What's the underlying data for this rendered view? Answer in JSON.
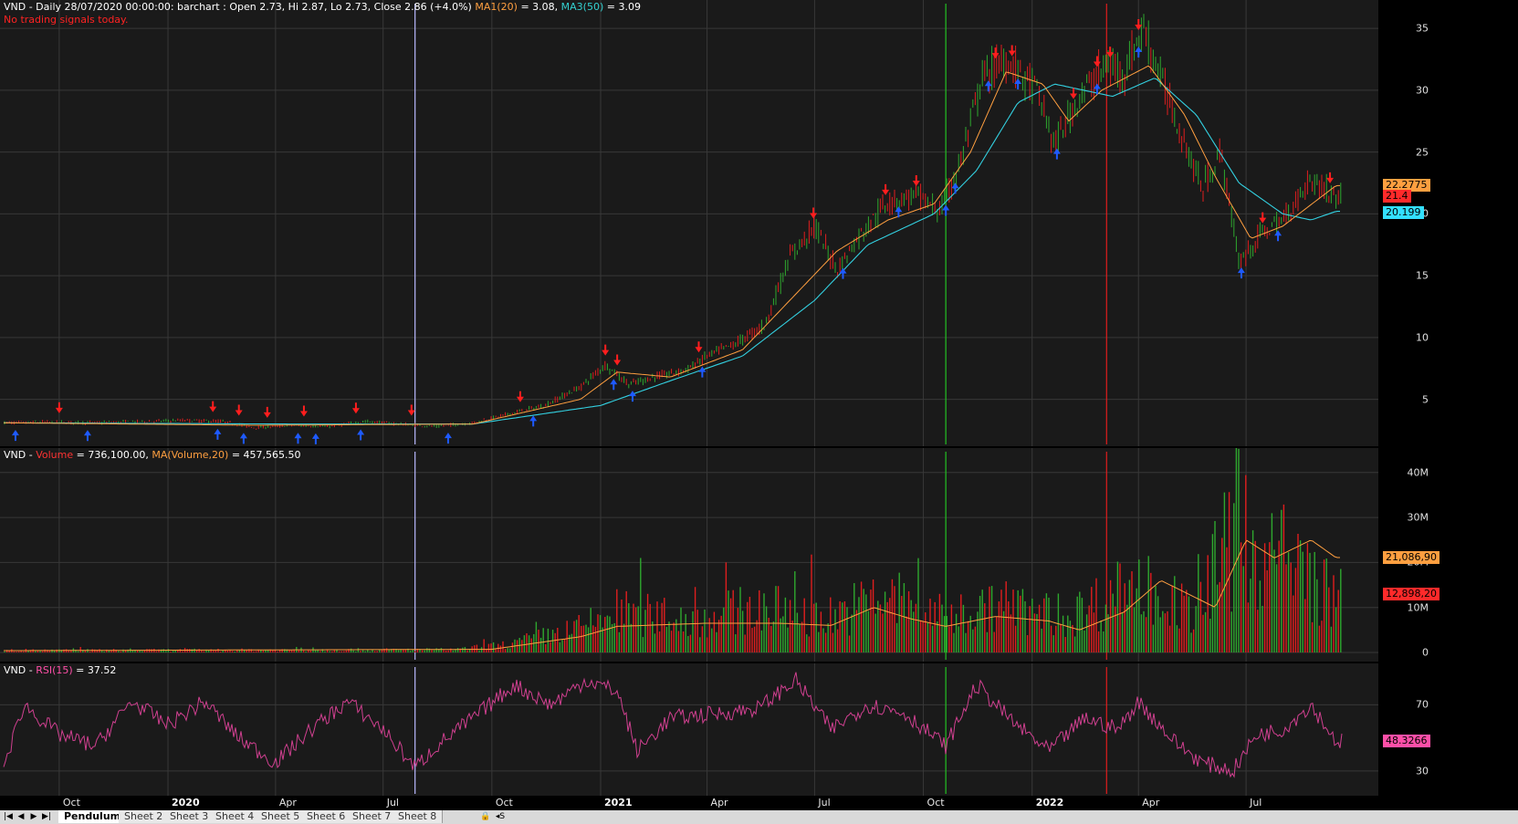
{
  "price_pane": {
    "header": {
      "prefix": "VND - Daily 28/07/2020 00:00:00: barchart : Open 2.73, Hi 2.87, Lo 2.73, Close 2.86 (+4.0%)",
      "ma1_label": "MA1(20)",
      "ma1_value": "= 3.08,",
      "ma3_label": "MA3(50)",
      "ma3_value": "= 3.09"
    },
    "note": "No trading signals today.",
    "y_ticks": [
      "35",
      "30",
      "25",
      "20",
      "15",
      "10",
      "5"
    ],
    "tags": [
      {
        "text": "22.2775",
        "color": "#ff9f40"
      },
      {
        "text": "21.4",
        "color": "#ff2a2a"
      },
      {
        "text": "20.199",
        "color": "#33e0ff"
      }
    ]
  },
  "volume_pane": {
    "header": {
      "prefix": "VND -",
      "vol_label": "Volume",
      "vol_value": "= 736,100.00,",
      "ma_label": "MA(Volume,20)",
      "ma_value": "= 457,565.50"
    },
    "y_ticks": [
      "40M",
      "30M",
      "20M",
      "10M",
      "0"
    ],
    "tags": [
      {
        "text": "21,086,90",
        "color": "#ff9f40"
      },
      {
        "text": "12,898,20",
        "color": "#ff2a2a"
      }
    ]
  },
  "rsi_pane": {
    "header": {
      "prefix": "VND -",
      "rsi_label": "RSI(15)",
      "rsi_value": "= 37.52"
    },
    "y_ticks": [
      "70",
      "30"
    ],
    "tags": [
      {
        "text": "48.3266",
        "color": "#ff4fa8"
      }
    ]
  },
  "x_axis": [
    {
      "label": "Oct",
      "bold": false
    },
    {
      "label": "2020",
      "bold": true
    },
    {
      "label": "Apr",
      "bold": false
    },
    {
      "label": "Jul",
      "bold": false
    },
    {
      "label": "Oct",
      "bold": false
    },
    {
      "label": "2021",
      "bold": true
    },
    {
      "label": "Apr",
      "bold": false
    },
    {
      "label": "Jul",
      "bold": false
    },
    {
      "label": "Oct",
      "bold": false
    },
    {
      "label": "2022",
      "bold": true
    },
    {
      "label": "Apr",
      "bold": false
    },
    {
      "label": "Jul",
      "bold": false
    }
  ],
  "tabs": [
    "Pendulum",
    "Sheet 2",
    "Sheet 3",
    "Sheet 4",
    "Sheet 5",
    "Sheet 6",
    "Sheet 7",
    "Sheet 8"
  ],
  "active_tab": "Pendulum",
  "nav_icons": [
    "first-icon",
    "prev-icon",
    "next-icon",
    "last-icon"
  ],
  "colors": {
    "up_bar": "#2ea82e",
    "down_bar": "#e01e1e",
    "ma1": "#ff9f40",
    "ma3": "#33d0e0",
    "rsi": "#d04090",
    "buy_arrow": "#1e5aff",
    "sell_arrow": "#ff1e1e",
    "grid": "#383838"
  },
  "chart_data": [
    {
      "type": "candlestick",
      "title": "VND - Daily",
      "y_range": [
        1.5,
        37
      ],
      "x_range": [
        "2019-08-15",
        "2022-09-20"
      ],
      "close_series": [
        [
          "2019-08-15",
          3.1
        ],
        [
          "2019-09-15",
          3.15
        ],
        [
          "2019-11-01",
          3.1
        ],
        [
          "2019-12-15",
          3.2
        ],
        [
          "2020-01-15",
          3.3
        ],
        [
          "2020-02-15",
          3.2
        ],
        [
          "2020-03-15",
          2.7
        ],
        [
          "2020-04-15",
          2.9
        ],
        [
          "2020-05-15",
          2.8
        ],
        [
          "2020-06-15",
          3.2
        ],
        [
          "2020-07-15",
          3.0
        ],
        [
          "2020-08-15",
          2.8
        ],
        [
          "2020-09-15",
          3.1
        ],
        [
          "2020-10-15",
          3.8
        ],
        [
          "2020-11-15",
          4.5
        ],
        [
          "2020-12-15",
          6.0
        ],
        [
          "2021-01-05",
          7.8
        ],
        [
          "2021-01-25",
          6.2
        ],
        [
          "2021-02-15",
          6.8
        ],
        [
          "2021-03-15",
          7.4
        ],
        [
          "2021-04-01",
          8.5
        ],
        [
          "2021-04-25",
          9.5
        ],
        [
          "2021-05-20",
          11.0
        ],
        [
          "2021-06-10",
          16.5
        ],
        [
          "2021-07-01",
          19.0
        ],
        [
          "2021-07-20",
          15.5
        ],
        [
          "2021-08-10",
          18.5
        ],
        [
          "2021-09-01",
          21.0
        ],
        [
          "2021-09-25",
          21.5
        ],
        [
          "2021-10-15",
          20.2
        ],
        [
          "2021-11-01",
          24.0
        ],
        [
          "2021-11-20",
          31.0
        ],
        [
          "2021-12-10",
          32.5
        ],
        [
          "2022-01-05",
          30.0
        ],
        [
          "2022-01-20",
          25.5
        ],
        [
          "2022-02-10",
          29.5
        ],
        [
          "2022-03-05",
          32.0
        ],
        [
          "2022-03-20",
          31.5
        ],
        [
          "2022-04-05",
          35.0
        ],
        [
          "2022-04-20",
          31.0
        ],
        [
          "2022-05-05",
          27.0
        ],
        [
          "2022-05-25",
          22.0
        ],
        [
          "2022-06-10",
          25.0
        ],
        [
          "2022-06-25",
          16.0
        ],
        [
          "2022-07-15",
          18.5
        ],
        [
          "2022-08-01",
          19.5
        ],
        [
          "2022-08-25",
          22.8
        ],
        [
          "2022-09-15",
          21.4
        ]
      ],
      "ma1_series": [
        [
          "2019-08-15",
          3.1
        ],
        [
          "2020-03-15",
          2.9
        ],
        [
          "2020-09-15",
          3.0
        ],
        [
          "2020-12-15",
          5.0
        ],
        [
          "2021-01-15",
          7.2
        ],
        [
          "2021-03-01",
          6.8
        ],
        [
          "2021-05-01",
          9.0
        ],
        [
          "2021-06-20",
          14.0
        ],
        [
          "2021-07-20",
          17.0
        ],
        [
          "2021-09-01",
          19.5
        ],
        [
          "2021-10-10",
          20.8
        ],
        [
          "2021-11-10",
          25.0
        ],
        [
          "2021-12-10",
          31.5
        ],
        [
          "2022-01-10",
          30.5
        ],
        [
          "2022-02-01",
          27.5
        ],
        [
          "2022-03-01",
          30.0
        ],
        [
          "2022-04-10",
          32.0
        ],
        [
          "2022-05-10",
          28.0
        ],
        [
          "2022-06-05",
          23.0
        ],
        [
          "2022-07-05",
          18.0
        ],
        [
          "2022-08-01",
          19.0
        ],
        [
          "2022-09-15",
          22.28
        ]
      ],
      "ma3_series": [
        [
          "2019-08-15",
          3.1
        ],
        [
          "2020-04-15",
          3.0
        ],
        [
          "2020-09-15",
          3.0
        ],
        [
          "2021-01-01",
          4.5
        ],
        [
          "2021-03-01",
          6.5
        ],
        [
          "2021-05-01",
          8.5
        ],
        [
          "2021-07-01",
          13.0
        ],
        [
          "2021-08-15",
          17.5
        ],
        [
          "2021-10-10",
          20.0
        ],
        [
          "2021-11-15",
          23.5
        ],
        [
          "2021-12-20",
          29.0
        ],
        [
          "2022-01-20",
          30.5
        ],
        [
          "2022-03-10",
          29.5
        ],
        [
          "2022-04-15",
          31.0
        ],
        [
          "2022-05-20",
          28.0
        ],
        [
          "2022-06-25",
          22.5
        ],
        [
          "2022-08-01",
          20.0
        ],
        [
          "2022-08-25",
          19.5
        ],
        [
          "2022-09-15",
          20.2
        ]
      ],
      "sell_signal_dates": [
        "2019-10-01",
        "2020-02-08",
        "2020-03-01",
        "2020-03-25",
        "2020-04-25",
        "2020-06-08",
        "2020-07-25",
        "2020-10-25",
        "2021-01-05",
        "2021-01-15",
        "2021-03-25",
        "2021-06-30",
        "2021-08-30",
        "2021-09-25",
        "2021-12-01",
        "2021-12-15",
        "2022-02-05",
        "2022-02-25",
        "2022-03-08",
        "2022-04-01",
        "2022-07-15",
        "2022-09-10"
      ],
      "buy_signal_dates": [
        "2019-08-25",
        "2019-10-25",
        "2020-02-12",
        "2020-03-05",
        "2020-04-20",
        "2020-05-05",
        "2020-06-12",
        "2020-08-25",
        "2020-11-05",
        "2021-01-12",
        "2021-01-28",
        "2021-03-28",
        "2021-07-25",
        "2021-09-10",
        "2021-10-20",
        "2021-10-28",
        "2021-11-25",
        "2021-12-20",
        "2022-01-22",
        "2022-02-25",
        "2022-04-01",
        "2022-06-27",
        "2022-07-28"
      ],
      "vertical_markers": [
        {
          "date": "2020-07-28",
          "color": "#b8b8ff"
        },
        {
          "date": "2021-10-20",
          "color": "#22c022"
        },
        {
          "date": "2022-03-05",
          "color": "#e01e1e"
        }
      ],
      "last_values": {
        "ma1": 22.2775,
        "close": 21.4,
        "ma3": 20.199
      }
    },
    {
      "type": "bar",
      "title": "Volume",
      "y_range": [
        0,
        43000000
      ],
      "volume_profile": [
        [
          "2019-08-15",
          500000
        ],
        [
          "2020-09-01",
          700000
        ],
        [
          "2020-10-15",
          2000000
        ],
        [
          "2020-12-15",
          6000000
        ],
        [
          "2021-01-15",
          10000000
        ],
        [
          "2021-03-15",
          8000000
        ],
        [
          "2021-05-15",
          11000000
        ],
        [
          "2021-07-15",
          9000000
        ],
        [
          "2021-09-01",
          14000000
        ],
        [
          "2021-10-15",
          9000000
        ],
        [
          "2021-12-01",
          11000000
        ],
        [
          "2022-02-01",
          9000000
        ],
        [
          "2022-04-01",
          17000000
        ],
        [
          "2022-05-20",
          9000000
        ],
        [
          "2022-06-10",
          25000000
        ],
        [
          "2022-08-01",
          24000000
        ],
        [
          "2022-09-15",
          13000000
        ]
      ],
      "ma_series": [
        [
          "2019-08-15",
          400000
        ],
        [
          "2020-10-01",
          700000
        ],
        [
          "2020-12-15",
          3500000
        ],
        [
          "2021-01-15",
          5800000
        ],
        [
          "2021-04-01",
          6500000
        ],
        [
          "2021-06-01",
          6500000
        ],
        [
          "2021-07-15",
          6000000
        ],
        [
          "2021-08-20",
          10000000
        ],
        [
          "2021-09-20",
          7500000
        ],
        [
          "2021-10-20",
          5800000
        ],
        [
          "2021-12-01",
          8000000
        ],
        [
          "2022-01-15",
          7000000
        ],
        [
          "2022-02-10",
          5000000
        ],
        [
          "2022-03-20",
          9000000
        ],
        [
          "2022-04-20",
          16000000
        ],
        [
          "2022-06-05",
          10000000
        ],
        [
          "2022-07-01",
          25000000
        ],
        [
          "2022-07-25",
          21000000
        ],
        [
          "2022-08-25",
          25000000
        ],
        [
          "2022-09-15",
          21086900
        ]
      ],
      "last_values": {
        "ma": 21086900,
        "volume": 12898200
      }
    },
    {
      "type": "line",
      "title": "RSI(15)",
      "y_range": [
        15,
        95
      ],
      "rsi_series": [
        [
          "2019-08-15",
          32
        ],
        [
          "2019-09-01",
          70
        ],
        [
          "2019-10-01",
          52
        ],
        [
          "2019-11-01",
          45
        ],
        [
          "2019-12-01",
          72
        ],
        [
          "2020-01-01",
          58
        ],
        [
          "2020-02-01",
          72
        ],
        [
          "2020-03-01",
          50
        ],
        [
          "2020-04-01",
          35
        ],
        [
          "2020-05-01",
          55
        ],
        [
          "2020-06-01",
          72
        ],
        [
          "2020-07-01",
          55
        ],
        [
          "2020-07-28",
          32
        ],
        [
          "2020-08-15",
          45
        ],
        [
          "2020-09-15",
          62
        ],
        [
          "2020-10-20",
          82
        ],
        [
          "2020-11-20",
          70
        ],
        [
          "2020-12-20",
          85
        ],
        [
          "2021-01-15",
          78
        ],
        [
          "2021-02-01",
          42
        ],
        [
          "2021-03-01",
          62
        ],
        [
          "2021-04-15",
          65
        ],
        [
          "2021-05-15",
          68
        ],
        [
          "2021-06-15",
          85
        ],
        [
          "2021-07-15",
          55
        ],
        [
          "2021-08-15",
          70
        ],
        [
          "2021-09-15",
          65
        ],
        [
          "2021-10-20",
          45
        ],
        [
          "2021-11-15",
          82
        ],
        [
          "2021-12-15",
          60
        ],
        [
          "2022-01-15",
          42
        ],
        [
          "2022-02-15",
          62
        ],
        [
          "2022-03-15",
          55
        ],
        [
          "2022-04-01",
          72
        ],
        [
          "2022-05-01",
          48
        ],
        [
          "2022-05-25",
          35
        ],
        [
          "2022-06-20",
          30
        ],
        [
          "2022-07-10",
          52
        ],
        [
          "2022-08-01",
          55
        ],
        [
          "2022-08-25",
          70
        ],
        [
          "2022-09-15",
          48
        ]
      ],
      "last_value": 48.3266
    }
  ]
}
